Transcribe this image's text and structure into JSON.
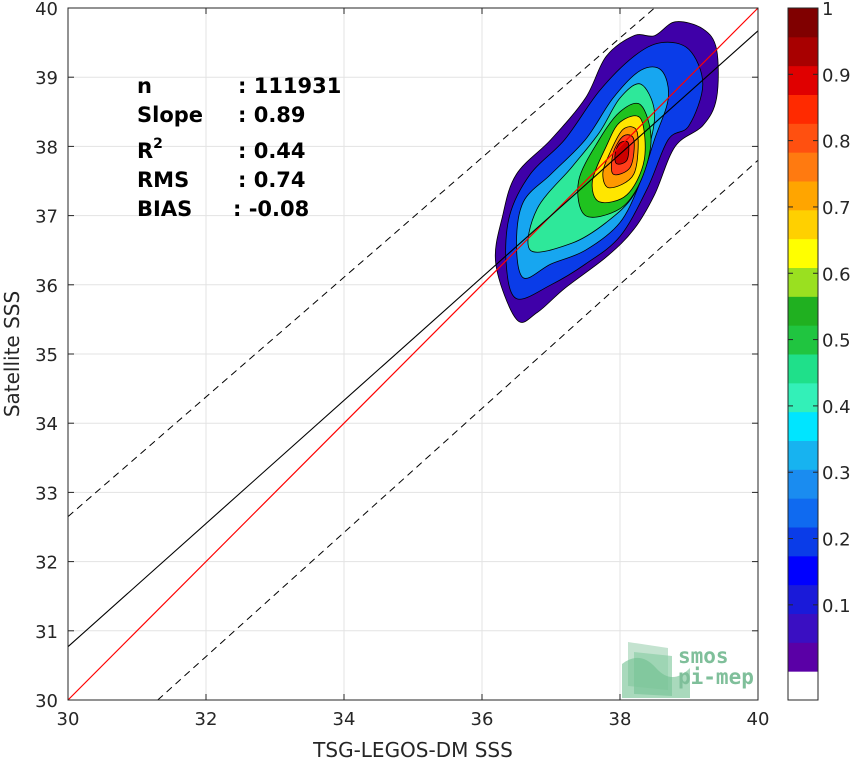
{
  "chart_data": {
    "type": "contour",
    "xlabel": "TSG-LEGOS-DM SSS",
    "ylabel": "Satellite SSS",
    "xlim": [
      30,
      40
    ],
    "ylim": [
      30,
      40
    ],
    "xticks": [
      "30",
      "32",
      "34",
      "36",
      "38",
      "40"
    ],
    "yticks": [
      "30",
      "31",
      "32",
      "33",
      "34",
      "35",
      "36",
      "37",
      "38",
      "39",
      "40"
    ],
    "grid": true,
    "stats": [
      {
        "label": "n",
        "value": ": 111931"
      },
      {
        "label": "Slope",
        "value": ": 0.89"
      },
      {
        "label": "R",
        "sup": "2",
        "value": ": 0.44"
      },
      {
        "label": "RMS",
        "value": ": 0.74"
      },
      {
        "label": "BIAS",
        "value": ": -0.08"
      }
    ],
    "lines": {
      "identity": {
        "color": "#ff0000",
        "points": [
          [
            30,
            30
          ],
          [
            40,
            40
          ]
        ]
      },
      "regression": {
        "color": "#000000",
        "slope": 0.89,
        "intercept_point": [
          30,
          30.77
        ]
      },
      "upper_bound": {
        "style": "dashed",
        "points": [
          [
            30,
            32.65
          ],
          [
            38.5,
            40
          ]
        ]
      },
      "lower_bound": {
        "style": "dashed",
        "points": [
          [
            31.3,
            30
          ],
          [
            40,
            37.8
          ]
        ]
      }
    },
    "density_contours": [
      {
        "level": 0.05,
        "color": "#3f00a8",
        "points": [
          [
            36.5,
            35.5
          ],
          [
            36.8,
            35.6
          ],
          [
            37.2,
            35.95
          ],
          [
            37.8,
            36.4
          ],
          [
            38.2,
            36.8
          ],
          [
            38.5,
            37.3
          ],
          [
            38.8,
            38.0
          ],
          [
            39.2,
            38.3
          ],
          [
            39.4,
            38.7
          ],
          [
            39.4,
            39.4
          ],
          [
            39.2,
            39.7
          ],
          [
            38.8,
            39.8
          ],
          [
            38.5,
            39.6
          ],
          [
            38.2,
            39.6
          ],
          [
            37.8,
            39.3
          ],
          [
            37.5,
            38.7
          ],
          [
            37.0,
            38.1
          ],
          [
            36.5,
            37.6
          ],
          [
            36.3,
            37.0
          ],
          [
            36.2,
            36.3
          ]
        ]
      },
      {
        "level": 0.15,
        "color": "#0a3ce8",
        "points": [
          [
            36.5,
            35.8
          ],
          [
            37.0,
            36.0
          ],
          [
            37.5,
            36.3
          ],
          [
            38.0,
            36.7
          ],
          [
            38.4,
            37.4
          ],
          [
            38.7,
            38.1
          ],
          [
            39.0,
            38.3
          ],
          [
            39.2,
            38.9
          ],
          [
            39.0,
            39.4
          ],
          [
            38.6,
            39.5
          ],
          [
            38.2,
            39.3
          ],
          [
            37.7,
            38.8
          ],
          [
            37.2,
            38.1
          ],
          [
            36.7,
            37.6
          ],
          [
            36.4,
            37.0
          ],
          [
            36.35,
            36.3
          ]
        ]
      },
      {
        "level": 0.3,
        "color": "#17a6f0",
        "points": [
          [
            36.6,
            36.1
          ],
          [
            37.0,
            36.3
          ],
          [
            37.5,
            36.5
          ],
          [
            38.0,
            36.9
          ],
          [
            38.3,
            37.5
          ],
          [
            38.5,
            38.1
          ],
          [
            38.7,
            38.7
          ],
          [
            38.6,
            39.1
          ],
          [
            38.3,
            39.1
          ],
          [
            37.9,
            38.7
          ],
          [
            37.5,
            38.1
          ],
          [
            37.0,
            37.6
          ],
          [
            36.6,
            37.2
          ],
          [
            36.5,
            36.6
          ]
        ]
      },
      {
        "level": 0.45,
        "color": "#2ee89a",
        "points": [
          [
            36.7,
            36.5
          ],
          [
            37.3,
            36.6
          ],
          [
            37.8,
            36.9
          ],
          [
            38.2,
            37.3
          ],
          [
            38.4,
            37.9
          ],
          [
            38.5,
            38.5
          ],
          [
            38.3,
            38.9
          ],
          [
            38.0,
            38.7
          ],
          [
            37.7,
            38.2
          ],
          [
            37.3,
            37.7
          ],
          [
            36.8,
            37.1
          ]
        ]
      },
      {
        "level": 0.55,
        "color": "#1fc21f",
        "points": [
          [
            37.5,
            37.0
          ],
          [
            38.0,
            37.1
          ],
          [
            38.3,
            37.5
          ],
          [
            38.45,
            38.1
          ],
          [
            38.3,
            38.6
          ],
          [
            38.0,
            38.5
          ],
          [
            37.7,
            38.1
          ],
          [
            37.4,
            37.5
          ]
        ]
      },
      {
        "level": 0.65,
        "color": "#ffe600",
        "points": [
          [
            37.7,
            37.2
          ],
          [
            38.1,
            37.3
          ],
          [
            38.35,
            37.8
          ],
          [
            38.3,
            38.4
          ],
          [
            38.0,
            38.35
          ],
          [
            37.8,
            38.0
          ],
          [
            37.6,
            37.5
          ]
        ]
      },
      {
        "level": 0.75,
        "color": "#ff9900",
        "points": [
          [
            37.85,
            37.4
          ],
          [
            38.2,
            37.6
          ],
          [
            38.25,
            38.2
          ],
          [
            38.05,
            38.25
          ],
          [
            37.85,
            37.9
          ],
          [
            37.75,
            37.6
          ]
        ]
      },
      {
        "level": 0.85,
        "color": "#ff3d1a",
        "points": [
          [
            37.9,
            37.6
          ],
          [
            38.15,
            37.7
          ],
          [
            38.2,
            38.1
          ],
          [
            38.05,
            38.15
          ],
          [
            37.9,
            37.9
          ]
        ]
      },
      {
        "level": 0.92,
        "color": "#cc0000",
        "points": [
          [
            37.95,
            37.75
          ],
          [
            38.1,
            37.8
          ],
          [
            38.12,
            38.05
          ],
          [
            38.0,
            38.05
          ],
          [
            37.93,
            37.9
          ]
        ]
      }
    ],
    "colorbar": {
      "ticks": [
        "0.1",
        "0.2",
        "0.3",
        "0.4",
        "0.5",
        "0.6",
        "0.7",
        "0.8",
        "0.9",
        "1"
      ],
      "colors": [
        "#ffffff",
        "#5a00a6",
        "#3a0fc2",
        "#1a1ad9",
        "#0000ff",
        "#0a3ce8",
        "#0f6af0",
        "#1a8cf0",
        "#17b3f0",
        "#00e5ff",
        "#33f0b8",
        "#1fe08a",
        "#20c540",
        "#20b020",
        "#9ae020",
        "#ffff00",
        "#ffd000",
        "#ffa500",
        "#ff7a10",
        "#ff5010",
        "#ff2a00",
        "#e00000",
        "#a80000",
        "#800000"
      ]
    },
    "logo": {
      "line1": "smos",
      "line2": "pi-mep"
    }
  }
}
